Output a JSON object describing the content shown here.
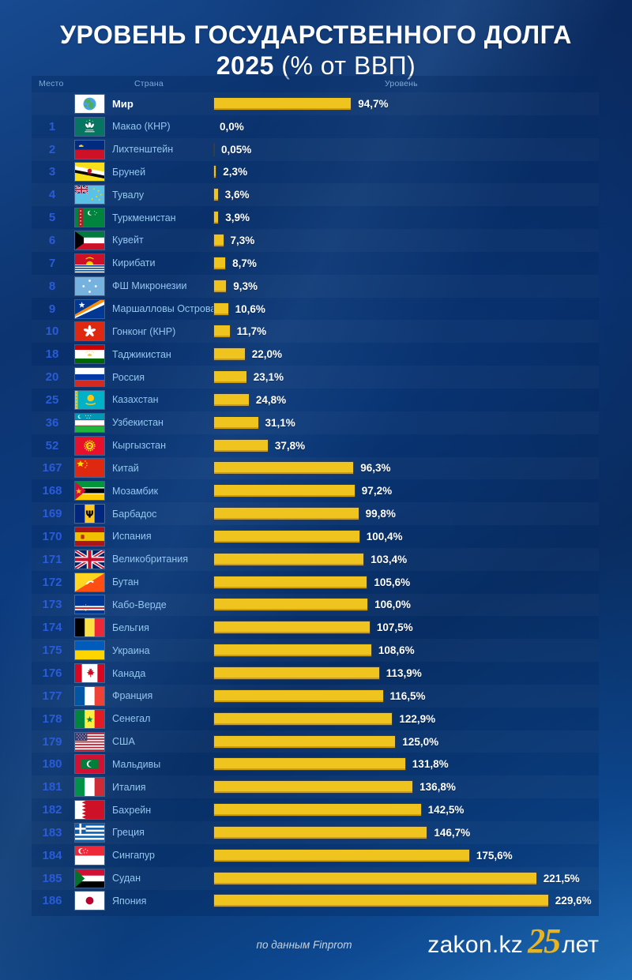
{
  "title": {
    "line1": "УРОВЕНЬ ГОСУДАРСТВЕННОГО ДОЛГА",
    "year": "2025",
    "subtitle": " (% от ВВП)"
  },
  "table": {
    "headers": {
      "rank": "Место",
      "country": "Страна",
      "level": "Уровень"
    }
  },
  "chart_data": {
    "type": "bar",
    "orientation": "horizontal",
    "title": "УРОВЕНЬ ГОСУДАРСТВЕННОГО ДОЛГА 2025 (% от ВВП)",
    "value_unit": "% от ВВП",
    "xlim": [
      0,
      240
    ],
    "source": "Finprom",
    "rows": [
      {
        "rank": "",
        "country": "Мир",
        "value": 94.7,
        "value_label": "94,7%",
        "flag": "world"
      },
      {
        "rank": "1",
        "country": "Макао (КНР)",
        "value": 0.0,
        "value_label": "0,0%",
        "flag": "macau"
      },
      {
        "rank": "2",
        "country": "Лихтенштейн",
        "value": 0.05,
        "value_label": "0,05%",
        "flag": "liechtenstein"
      },
      {
        "rank": "3",
        "country": "Бруней",
        "value": 2.3,
        "value_label": "2,3%",
        "flag": "brunei"
      },
      {
        "rank": "4",
        "country": "Тувалу",
        "value": 3.6,
        "value_label": "3,6%",
        "flag": "tuvalu"
      },
      {
        "rank": "5",
        "country": "Туркменистан",
        "value": 3.9,
        "value_label": "3,9%",
        "flag": "turkmenistan"
      },
      {
        "rank": "6",
        "country": "Кувейт",
        "value": 7.3,
        "value_label": "7,3%",
        "flag": "kuwait"
      },
      {
        "rank": "7",
        "country": "Кирибати",
        "value": 8.7,
        "value_label": "8,7%",
        "flag": "kiribati"
      },
      {
        "rank": "8",
        "country": "ФШ Микронезии",
        "value": 9.3,
        "value_label": "9,3%",
        "flag": "micronesia"
      },
      {
        "rank": "9",
        "country": "Маршалловы Острова",
        "value": 10.6,
        "value_label": "10,6%",
        "flag": "marshall"
      },
      {
        "rank": "10",
        "country": "Гонконг (КНР)",
        "value": 11.7,
        "value_label": "11,7%",
        "flag": "hongkong"
      },
      {
        "rank": "18",
        "country": "Таджикистан",
        "value": 22.0,
        "value_label": "22,0%",
        "flag": "tajikistan"
      },
      {
        "rank": "20",
        "country": "Россия",
        "value": 23.1,
        "value_label": "23,1%",
        "flag": "russia"
      },
      {
        "rank": "25",
        "country": "Казахстан",
        "value": 24.8,
        "value_label": "24,8%",
        "flag": "kazakhstan"
      },
      {
        "rank": "36",
        "country": "Узбекистан",
        "value": 31.1,
        "value_label": "31,1%",
        "flag": "uzbekistan"
      },
      {
        "rank": "52",
        "country": "Кыргызстан",
        "value": 37.8,
        "value_label": "37,8%",
        "flag": "kyrgyzstan"
      },
      {
        "rank": "167",
        "country": "Китай",
        "value": 96.3,
        "value_label": "96,3%",
        "flag": "china"
      },
      {
        "rank": "168",
        "country": "Мозамбик",
        "value": 97.2,
        "value_label": "97,2%",
        "flag": "mozambique"
      },
      {
        "rank": "169",
        "country": "Барбадос",
        "value": 99.8,
        "value_label": "99,8%",
        "flag": "barbados"
      },
      {
        "rank": "170",
        "country": "Испания",
        "value": 100.4,
        "value_label": "100,4%",
        "flag": "spain"
      },
      {
        "rank": "171",
        "country": "Великобритания",
        "value": 103.4,
        "value_label": "103,4%",
        "flag": "uk"
      },
      {
        "rank": "172",
        "country": "Бутан",
        "value": 105.6,
        "value_label": "105,6%",
        "flag": "bhutan"
      },
      {
        "rank": "173",
        "country": "Кабо-Верде",
        "value": 106.0,
        "value_label": "106,0%",
        "flag": "capeverde"
      },
      {
        "rank": "174",
        "country": "Бельгия",
        "value": 107.5,
        "value_label": "107,5%",
        "flag": "belgium"
      },
      {
        "rank": "175",
        "country": "Украина",
        "value": 108.6,
        "value_label": "108,6%",
        "flag": "ukraine"
      },
      {
        "rank": "176",
        "country": "Канада",
        "value": 113.9,
        "value_label": "113,9%",
        "flag": "canada"
      },
      {
        "rank": "177",
        "country": "Франция",
        "value": 116.5,
        "value_label": "116,5%",
        "flag": "france"
      },
      {
        "rank": "178",
        "country": "Сенегал",
        "value": 122.9,
        "value_label": "122,9%",
        "flag": "senegal"
      },
      {
        "rank": "179",
        "country": "США",
        "value": 125.0,
        "value_label": "125,0%",
        "flag": "usa"
      },
      {
        "rank": "180",
        "country": "Мальдивы",
        "value": 131.8,
        "value_label": "131,8%",
        "flag": "maldives"
      },
      {
        "rank": "181",
        "country": "Италия",
        "value": 136.8,
        "value_label": "136,8%",
        "flag": "italy"
      },
      {
        "rank": "182",
        "country": "Бахрейн",
        "value": 142.5,
        "value_label": "142,5%",
        "flag": "bahrain"
      },
      {
        "rank": "183",
        "country": "Греция",
        "value": 146.7,
        "value_label": "146,7%",
        "flag": "greece"
      },
      {
        "rank": "184",
        "country": "Сингапур",
        "value": 175.6,
        "value_label": "175,6%",
        "flag": "singapore"
      },
      {
        "rank": "185",
        "country": "Судан",
        "value": 221.5,
        "value_label": "221,5%",
        "flag": "sudan"
      },
      {
        "rank": "186",
        "country": "Япония",
        "value": 229.6,
        "value_label": "229,6%",
        "flag": "japan"
      }
    ]
  },
  "footer": {
    "source": "по данным Finprom",
    "brand": "zakon.kz",
    "anniversary_number": "25",
    "anniversary_word": "лет"
  },
  "colors": {
    "background": "#0c3b80",
    "panel": "#07306b",
    "bar": "#f0c41e",
    "rank_text": "#2a5bd8",
    "country_text": "#92c6ee",
    "value_text": "#ffffff",
    "header_text": "#7fa9d9",
    "world_row_text": "#ffffff",
    "brand_accent": "#e7b422"
  }
}
